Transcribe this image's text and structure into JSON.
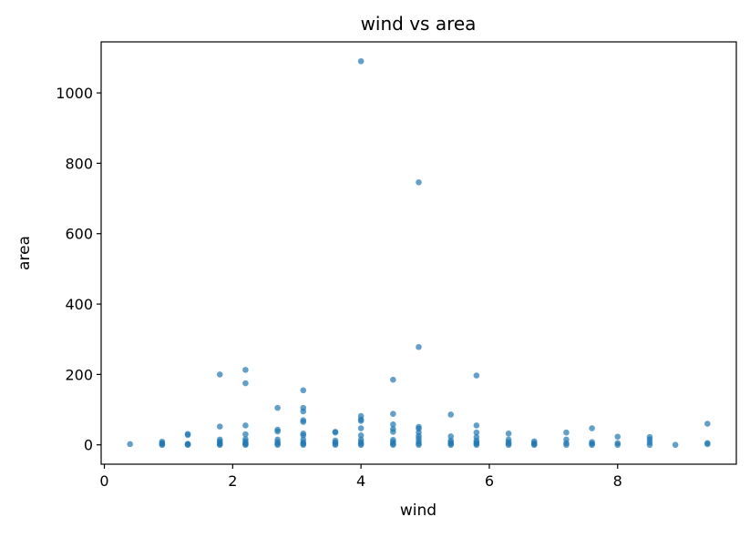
{
  "chart_data": {
    "type": "scatter",
    "title": "wind vs area",
    "xlabel": "wind",
    "ylabel": "area",
    "xlim": [
      -0.05,
      9.85
    ],
    "ylim": [
      -55,
      1145
    ],
    "xticks": [
      0,
      2,
      4,
      6,
      8
    ],
    "yticks": [
      0,
      200,
      400,
      600,
      800,
      1000
    ],
    "grid": false,
    "colors": {
      "marker": "#1f77b4"
    },
    "points": [
      {
        "x": 0.4,
        "y": 2
      },
      {
        "x": 0.9,
        "y": 0
      },
      {
        "x": 0.9,
        "y": 2
      },
      {
        "x": 0.9,
        "y": 5
      },
      {
        "x": 0.9,
        "y": 9
      },
      {
        "x": 1.3,
        "y": 0
      },
      {
        "x": 1.3,
        "y": 1
      },
      {
        "x": 1.3,
        "y": 3
      },
      {
        "x": 1.3,
        "y": 28
      },
      {
        "x": 1.3,
        "y": 31
      },
      {
        "x": 1.8,
        "y": 0
      },
      {
        "x": 1.8,
        "y": 2
      },
      {
        "x": 1.8,
        "y": 5
      },
      {
        "x": 1.8,
        "y": 10
      },
      {
        "x": 1.8,
        "y": 15
      },
      {
        "x": 1.8,
        "y": 52
      },
      {
        "x": 1.8,
        "y": 200
      },
      {
        "x": 2.2,
        "y": 0
      },
      {
        "x": 2.2,
        "y": 2
      },
      {
        "x": 2.2,
        "y": 5
      },
      {
        "x": 2.2,
        "y": 10
      },
      {
        "x": 2.2,
        "y": 16
      },
      {
        "x": 2.2,
        "y": 30
      },
      {
        "x": 2.2,
        "y": 55
      },
      {
        "x": 2.2,
        "y": 175
      },
      {
        "x": 2.2,
        "y": 213
      },
      {
        "x": 2.7,
        "y": 0
      },
      {
        "x": 2.7,
        "y": 3
      },
      {
        "x": 2.7,
        "y": 8
      },
      {
        "x": 2.7,
        "y": 15
      },
      {
        "x": 2.7,
        "y": 38
      },
      {
        "x": 2.7,
        "y": 43
      },
      {
        "x": 2.7,
        "y": 105
      },
      {
        "x": 3.1,
        "y": 0
      },
      {
        "x": 3.1,
        "y": 3
      },
      {
        "x": 3.1,
        "y": 7
      },
      {
        "x": 3.1,
        "y": 15
      },
      {
        "x": 3.1,
        "y": 27
      },
      {
        "x": 3.1,
        "y": 32
      },
      {
        "x": 3.1,
        "y": 65
      },
      {
        "x": 3.1,
        "y": 70
      },
      {
        "x": 3.1,
        "y": 95
      },
      {
        "x": 3.1,
        "y": 105
      },
      {
        "x": 3.1,
        "y": 155
      },
      {
        "x": 3.6,
        "y": 0
      },
      {
        "x": 3.6,
        "y": 3
      },
      {
        "x": 3.6,
        "y": 7
      },
      {
        "x": 3.6,
        "y": 12
      },
      {
        "x": 3.6,
        "y": 35
      },
      {
        "x": 3.6,
        "y": 37
      },
      {
        "x": 4.0,
        "y": 0
      },
      {
        "x": 4.0,
        "y": 3
      },
      {
        "x": 4.0,
        "y": 8
      },
      {
        "x": 4.0,
        "y": 15
      },
      {
        "x": 4.0,
        "y": 27
      },
      {
        "x": 4.0,
        "y": 47
      },
      {
        "x": 4.0,
        "y": 68
      },
      {
        "x": 4.0,
        "y": 72
      },
      {
        "x": 4.0,
        "y": 82
      },
      {
        "x": 4.0,
        "y": 1090
      },
      {
        "x": 4.5,
        "y": 0
      },
      {
        "x": 4.5,
        "y": 3
      },
      {
        "x": 4.5,
        "y": 8
      },
      {
        "x": 4.5,
        "y": 14
      },
      {
        "x": 4.5,
        "y": 37
      },
      {
        "x": 4.5,
        "y": 45
      },
      {
        "x": 4.5,
        "y": 58
      },
      {
        "x": 4.5,
        "y": 88
      },
      {
        "x": 4.5,
        "y": 185
      },
      {
        "x": 4.9,
        "y": 0
      },
      {
        "x": 4.9,
        "y": 4
      },
      {
        "x": 4.9,
        "y": 10
      },
      {
        "x": 4.9,
        "y": 18
      },
      {
        "x": 4.9,
        "y": 25
      },
      {
        "x": 4.9,
        "y": 35
      },
      {
        "x": 4.9,
        "y": 46
      },
      {
        "x": 4.9,
        "y": 51
      },
      {
        "x": 4.9,
        "y": 278
      },
      {
        "x": 4.9,
        "y": 746
      },
      {
        "x": 5.4,
        "y": 0
      },
      {
        "x": 5.4,
        "y": 3
      },
      {
        "x": 5.4,
        "y": 7
      },
      {
        "x": 5.4,
        "y": 12
      },
      {
        "x": 5.4,
        "y": 24
      },
      {
        "x": 5.4,
        "y": 86
      },
      {
        "x": 5.8,
        "y": 0
      },
      {
        "x": 5.8,
        "y": 3
      },
      {
        "x": 5.8,
        "y": 7
      },
      {
        "x": 5.8,
        "y": 12
      },
      {
        "x": 5.8,
        "y": 22
      },
      {
        "x": 5.8,
        "y": 35
      },
      {
        "x": 5.8,
        "y": 55
      },
      {
        "x": 5.8,
        "y": 197
      },
      {
        "x": 6.3,
        "y": 0
      },
      {
        "x": 6.3,
        "y": 3
      },
      {
        "x": 6.3,
        "y": 8
      },
      {
        "x": 6.3,
        "y": 15
      },
      {
        "x": 6.3,
        "y": 32
      },
      {
        "x": 6.7,
        "y": 0
      },
      {
        "x": 6.7,
        "y": 2
      },
      {
        "x": 6.7,
        "y": 5
      },
      {
        "x": 6.7,
        "y": 10
      },
      {
        "x": 7.2,
        "y": 0
      },
      {
        "x": 7.2,
        "y": 5
      },
      {
        "x": 7.2,
        "y": 15
      },
      {
        "x": 7.2,
        "y": 35
      },
      {
        "x": 7.6,
        "y": 0
      },
      {
        "x": 7.6,
        "y": 3
      },
      {
        "x": 7.6,
        "y": 8
      },
      {
        "x": 7.6,
        "y": 47
      },
      {
        "x": 8.0,
        "y": 0
      },
      {
        "x": 8.0,
        "y": 5
      },
      {
        "x": 8.0,
        "y": 23
      },
      {
        "x": 8.5,
        "y": 0
      },
      {
        "x": 8.5,
        "y": 7
      },
      {
        "x": 8.5,
        "y": 15
      },
      {
        "x": 8.5,
        "y": 22
      },
      {
        "x": 8.9,
        "y": 0
      },
      {
        "x": 9.4,
        "y": 2
      },
      {
        "x": 9.4,
        "y": 5
      },
      {
        "x": 9.4,
        "y": 60
      }
    ]
  }
}
